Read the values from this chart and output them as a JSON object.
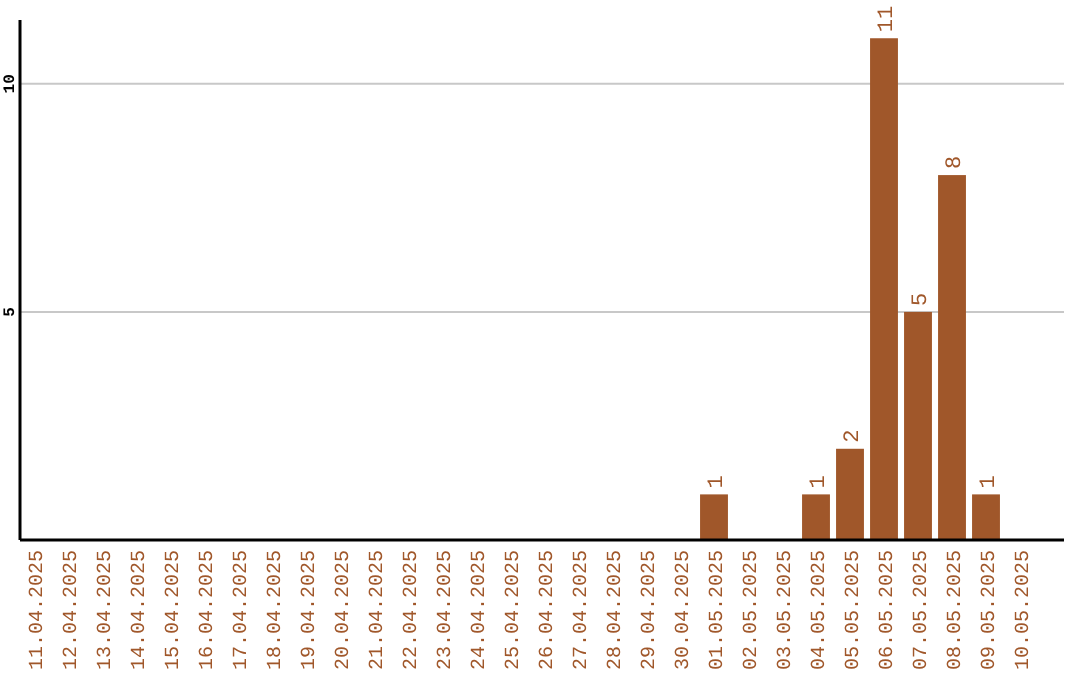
{
  "chart_data": {
    "type": "bar",
    "categories": [
      "11.04.2025",
      "12.04.2025",
      "13.04.2025",
      "14.04.2025",
      "15.04.2025",
      "16.04.2025",
      "17.04.2025",
      "18.04.2025",
      "19.04.2025",
      "20.04.2025",
      "21.04.2025",
      "22.04.2025",
      "23.04.2025",
      "24.04.2025",
      "25.04.2025",
      "26.04.2025",
      "27.04.2025",
      "28.04.2025",
      "29.04.2025",
      "30.04.2025",
      "01.05.2025",
      "02.05.2025",
      "03.05.2025",
      "04.05.2025",
      "05.05.2025",
      "06.05.2025",
      "07.05.2025",
      "08.05.2025",
      "09.05.2025",
      "10.05.2025"
    ],
    "values": [
      0,
      0,
      0,
      0,
      0,
      0,
      0,
      0,
      0,
      0,
      0,
      0,
      0,
      0,
      0,
      0,
      0,
      0,
      0,
      0,
      1,
      0,
      0,
      1,
      2,
      11,
      5,
      8,
      1,
      0
    ],
    "value_labels": [
      null,
      null,
      null,
      null,
      null,
      null,
      null,
      null,
      null,
      null,
      null,
      null,
      null,
      null,
      null,
      null,
      null,
      null,
      null,
      null,
      "1",
      null,
      null,
      "1",
      "2",
      "11",
      "5",
      "8",
      "1",
      null
    ],
    "color": "#a0572a",
    "ylim": [
      0,
      11.4
    ],
    "yticks": [
      5,
      10
    ],
    "grid": "y"
  }
}
